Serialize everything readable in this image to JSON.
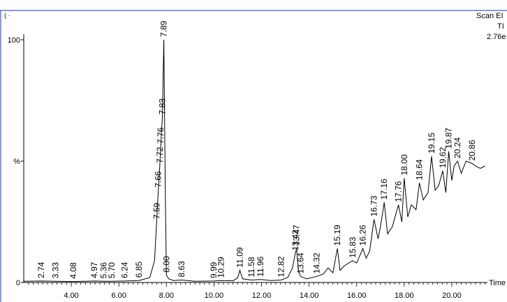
{
  "header": {
    "corner_mark": "( ·",
    "scan_label": "Scan EI",
    "tic_label": "TI",
    "intensity_label": "2.76e"
  },
  "chart_data": {
    "type": "line",
    "xlabel": "Time",
    "ylabel": "",
    "xlim": [
      2.0,
      21.5
    ],
    "ylim": [
      0,
      100
    ],
    "y_tick_labels": [
      {
        "value": 100,
        "label": "100"
      },
      {
        "value": 50,
        "label": "%"
      },
      {
        "value": 0,
        "label": "0"
      }
    ],
    "x_tick_labels": [
      "4.00",
      "6.00",
      "8.00",
      "10.00",
      "12.00",
      "14.00",
      "16.00",
      "18.00",
      "20.00"
    ],
    "x_tick_values": [
      4,
      6,
      8,
      10,
      12,
      14,
      16,
      18,
      20
    ],
    "series": [
      {
        "x": [
          2.0,
          2.74,
          3.33,
          4.08,
          4.97,
          5.36,
          5.7,
          6.24,
          6.85,
          7.3,
          7.5,
          7.59,
          7.66,
          7.72,
          7.76,
          7.83,
          7.89,
          7.95,
          8.0,
          8.1,
          8.3,
          8.63,
          9.2,
          9.99,
          10.29,
          10.8,
          11.0,
          11.09,
          11.2,
          11.58,
          11.96,
          12.4,
          12.82,
          13.1,
          13.3,
          13.42,
          13.47,
          13.55,
          13.64,
          13.9,
          14.32,
          14.6,
          14.8,
          15.0,
          15.19,
          15.3,
          15.5,
          15.83,
          16.0,
          16.26,
          16.4,
          16.55,
          16.73,
          16.9,
          17.0,
          17.16,
          17.3,
          17.5,
          17.76,
          17.9,
          18.0,
          18.15,
          18.3,
          18.5,
          18.64,
          18.8,
          19.0,
          19.15,
          19.3,
          19.45,
          19.62,
          19.75,
          19.87,
          20.0,
          20.1,
          20.24,
          20.4,
          20.6,
          20.86,
          21.0,
          21.2,
          21.4
        ],
        "values": [
          0.5,
          0.6,
          0.5,
          0.4,
          0.6,
          0.5,
          0.5,
          0.6,
          0.8,
          2.0,
          9.0,
          25.0,
          38.0,
          48.0,
          56.0,
          68.0,
          100.0,
          40.0,
          3.0,
          1.5,
          0.8,
          1.0,
          0.5,
          0.6,
          0.8,
          0.7,
          2.0,
          5.0,
          1.5,
          1.0,
          1.2,
          0.8,
          1.0,
          2.0,
          6.0,
          12.0,
          14.0,
          5.0,
          2.5,
          1.5,
          2.5,
          3.5,
          6.0,
          4.0,
          14.0,
          5.0,
          7.0,
          9.0,
          8.0,
          14.0,
          10.0,
          13.0,
          26.0,
          18.0,
          23.0,
          33.0,
          20.0,
          23.0,
          32.0,
          25.0,
          43.0,
          27.0,
          32.0,
          30.0,
          41.0,
          34.0,
          37.0,
          52.0,
          38.0,
          40.0,
          46.0,
          37.0,
          54.0,
          42.0,
          48.0,
          50.0,
          45.0,
          50.0,
          49.0,
          48.0,
          47.0,
          48.0
        ]
      }
    ],
    "peak_labels": [
      {
        "label": "2.74",
        "x": 2.74,
        "y": 0.6
      },
      {
        "label": "3.33",
        "x": 3.33,
        "y": 0.5
      },
      {
        "label": "4.08",
        "x": 4.08,
        "y": 0.4
      },
      {
        "label": "4.97",
        "x": 4.97,
        "y": 0.6
      },
      {
        "label": "5.36",
        "x": 5.36,
        "y": 0.5
      },
      {
        "label": "5.70",
        "x": 5.7,
        "y": 0.5
      },
      {
        "label": "6.24",
        "x": 6.24,
        "y": 0.6
      },
      {
        "label": "6.85",
        "x": 6.85,
        "y": 0.8
      },
      {
        "label": "7.59",
        "x": 7.59,
        "y": 25.0
      },
      {
        "label": "7.66",
        "x": 7.66,
        "y": 38.0
      },
      {
        "label": "7.72",
        "x": 7.72,
        "y": 48.0
      },
      {
        "label": "7.76",
        "x": 7.76,
        "y": 56.0
      },
      {
        "label": "7.83",
        "x": 7.83,
        "y": 68.0
      },
      {
        "label": "7.89",
        "x": 7.89,
        "y": 100.0
      },
      {
        "label": "8.00",
        "x": 8.0,
        "y": 3.0
      },
      {
        "label": "8.63",
        "x": 8.63,
        "y": 1.0
      },
      {
        "label": "9.99",
        "x": 9.99,
        "y": 0.6
      },
      {
        "label": "10.29",
        "x": 10.29,
        "y": 0.8
      },
      {
        "label": "11.09",
        "x": 11.09,
        "y": 5.0
      },
      {
        "label": "11.58",
        "x": 11.58,
        "y": 1.0
      },
      {
        "label": "11.96",
        "x": 11.96,
        "y": 1.2
      },
      {
        "label": "12.82",
        "x": 12.82,
        "y": 1.0
      },
      {
        "label": "13.42",
        "x": 13.42,
        "y": 12.0
      },
      {
        "label": "13.47",
        "x": 13.47,
        "y": 14.0
      },
      {
        "label": "13.64",
        "x": 13.64,
        "y": 2.5
      },
      {
        "label": "14.32",
        "x": 14.32,
        "y": 2.5
      },
      {
        "label": "15.19",
        "x": 15.19,
        "y": 14.0
      },
      {
        "label": "15.83",
        "x": 15.83,
        "y": 9.0
      },
      {
        "label": "16.26",
        "x": 16.26,
        "y": 14.0
      },
      {
        "label": "16.73",
        "x": 16.73,
        "y": 26.0
      },
      {
        "label": "17.16",
        "x": 17.16,
        "y": 33.0
      },
      {
        "label": "17.76",
        "x": 17.76,
        "y": 32.0
      },
      {
        "label": "18.00",
        "x": 18.0,
        "y": 43.0
      },
      {
        "label": "18.64",
        "x": 18.64,
        "y": 41.0
      },
      {
        "label": "19.15",
        "x": 19.15,
        "y": 52.0
      },
      {
        "label": "19.62",
        "x": 19.62,
        "y": 46.0
      },
      {
        "label": "19.87",
        "x": 19.87,
        "y": 54.0
      },
      {
        "label": "20.24",
        "x": 20.24,
        "y": 50.0
      },
      {
        "label": "20.86",
        "x": 20.86,
        "y": 49.0
      }
    ],
    "grid": false,
    "colors": {
      "trace": "#000000",
      "frame": "#1a2fd6"
    }
  }
}
